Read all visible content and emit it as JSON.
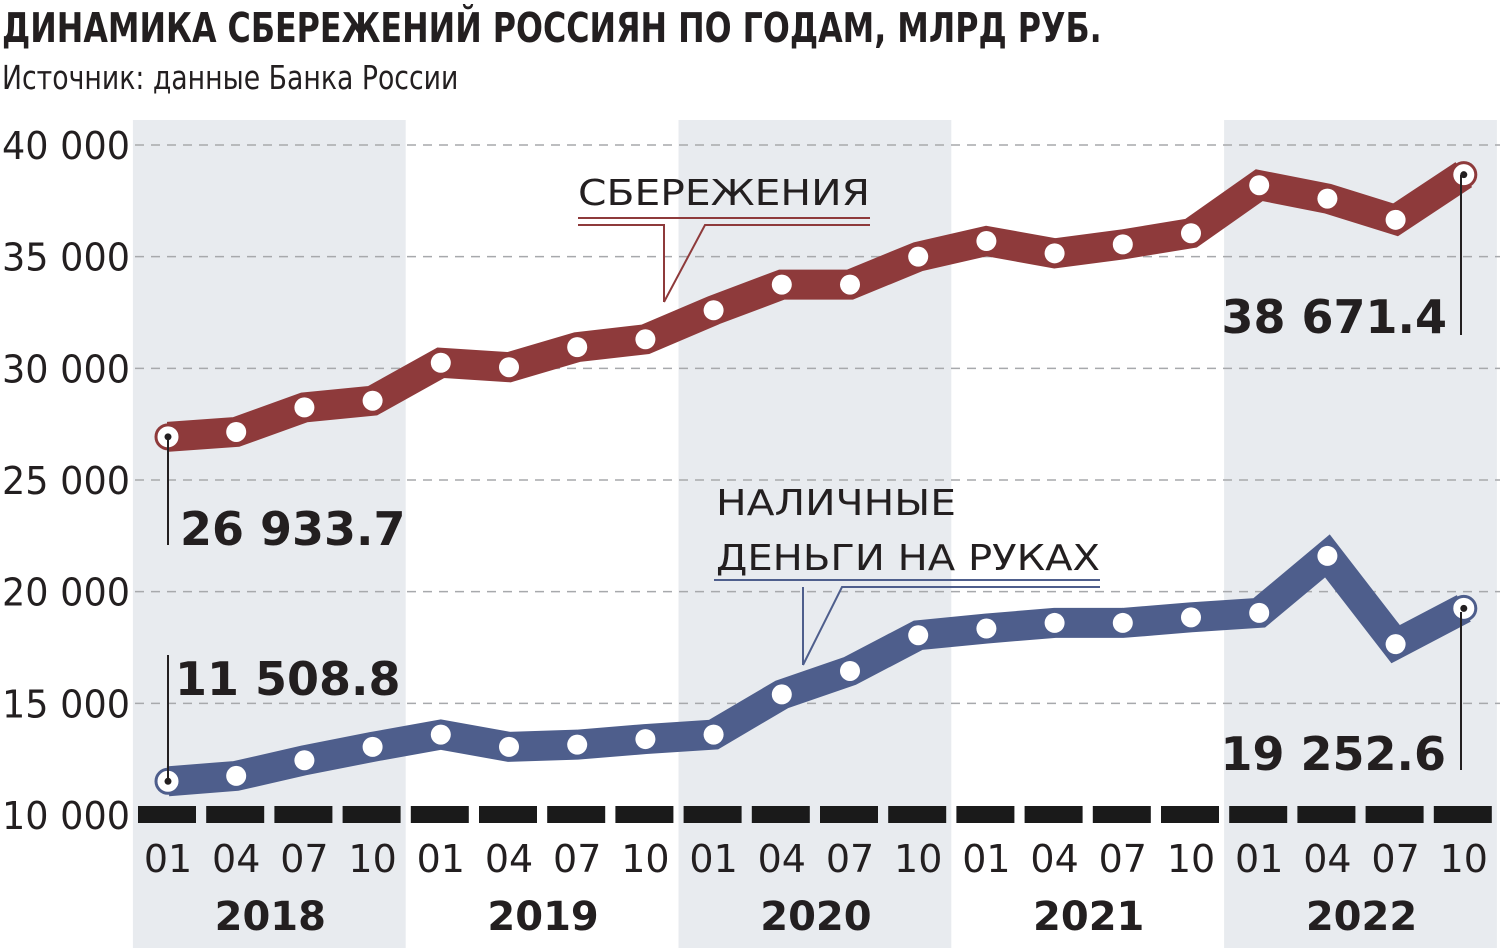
{
  "title": "ДИНАМИКА СБЕРЕЖЕНИЙ РОССИЯН ПО ГОДАМ, МЛРД РУБ.",
  "subtitle": "Источник: данные Банка России",
  "colors": {
    "savings": "#8e3a3b",
    "cash": "#4e5e8c",
    "band": "#e8ebef",
    "grid": "#a7a9ac",
    "axis": "#1a1a1a"
  },
  "chart_data": {
    "type": "line",
    "title": "ДИНАМИКА СБЕРЕЖЕНИЙ РОССИЯН ПО ГОДАМ, МЛРД РУБ.",
    "xlabel": "",
    "ylabel": "",
    "ylim": [
      10000,
      40000
    ],
    "yticks": [
      10000,
      15000,
      20000,
      25000,
      30000,
      35000,
      40000
    ],
    "ytick_labels": [
      "10 000",
      "15 000",
      "20 000",
      "25 000",
      "30 000",
      "35 000",
      "40 000"
    ],
    "grid": true,
    "categories": [
      "01",
      "04",
      "07",
      "10",
      "01",
      "04",
      "07",
      "10",
      "01",
      "04",
      "07",
      "10",
      "01",
      "04",
      "07",
      "10",
      "01",
      "04",
      "07",
      "10"
    ],
    "years": [
      "2018",
      "2019",
      "2020",
      "2021",
      "2022"
    ],
    "series": [
      {
        "name": "СБЕРЕЖЕНИЯ",
        "color": "#8e3a3b",
        "values": [
          26933.7,
          27150,
          28250,
          28550,
          30250,
          30050,
          30950,
          31300,
          32600,
          33750,
          33750,
          35000,
          35700,
          35150,
          35550,
          36050,
          38200,
          37600,
          36650,
          38671.4
        ]
      },
      {
        "name": "НАЛИЧНЫЕ ДЕНЬГИ НА РУКАХ",
        "color": "#4e5e8c",
        "values": [
          11508.8,
          11750,
          12450,
          13050,
          13600,
          13050,
          13150,
          13400,
          13600,
          15400,
          16450,
          18050,
          18350,
          18600,
          18600,
          18850,
          19050,
          21600,
          17650,
          19252.6
        ]
      }
    ],
    "annotations": [
      {
        "series": 0,
        "index": 0,
        "text": "26 933.7"
      },
      {
        "series": 0,
        "index": 19,
        "text": "38 671.4"
      },
      {
        "series": 1,
        "index": 0,
        "text": "11 508.8"
      },
      {
        "series": 1,
        "index": 19,
        "text": "19 252.6"
      }
    ],
    "series_labels": [
      {
        "lines": [
          "СБЕРЕЖЕНИЯ"
        ]
      },
      {
        "lines": [
          "НАЛИЧНЫЕ",
          "ДЕНЬГИ НА РУКАХ"
        ]
      }
    ]
  }
}
